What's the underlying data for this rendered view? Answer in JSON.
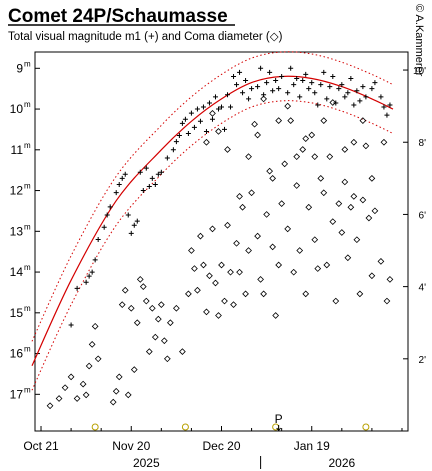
{
  "chart_data": {
    "type": "scatter",
    "title": "Comet 24P/Schaumasse",
    "subtitle": "Total visual magnitude m1 (+) and Coma diameter (◇)",
    "credit": "© A.Kammerer",
    "perihelion_label": "P",
    "perihelion_day": 79,
    "x_axis": {
      "range_days": [
        -2,
        122
      ],
      "reference": "Oct 21 2025 = day 0",
      "tick_days": [
        0,
        30,
        60,
        90
      ],
      "tick_labels": [
        "Oct 21",
        "Nov 20",
        "Dec 20",
        "Jan 19"
      ],
      "year_labels": [
        {
          "text": "2025",
          "day": 35
        },
        {
          "text": "2026",
          "day": 100
        }
      ],
      "year_divider_day": 73
    },
    "magnitude_axis": {
      "range": [
        8.6,
        17.9
      ],
      "inverted": true,
      "ticks": [
        9,
        10,
        11,
        12,
        13,
        14,
        15,
        16,
        17
      ],
      "tick_labels": [
        "9",
        "10",
        "11",
        "12",
        "13",
        "14",
        "15",
        "16",
        "17"
      ],
      "unit_label": "m"
    },
    "coma_axis": {
      "range": [
        0,
        10.5
      ],
      "unit": "arcmin",
      "ticks": [
        2,
        4,
        6,
        8,
        10
      ],
      "tick_labels": [
        "2'",
        "4'",
        "6'",
        "8'",
        "10'"
      ]
    },
    "moon_days": [
      18,
      48,
      78,
      108
    ],
    "series": [
      {
        "marker": "plus",
        "quantity": "total visual magnitude m1",
        "points": [
          [
            10,
            15.3
          ],
          [
            12,
            14.4
          ],
          [
            15,
            14.25
          ],
          [
            16,
            14.1
          ],
          [
            17,
            14.0
          ],
          [
            18,
            13.7
          ],
          [
            19,
            13.2
          ],
          [
            21,
            12.9
          ],
          [
            22,
            12.6
          ],
          [
            23,
            12.4
          ],
          [
            25,
            12.05
          ],
          [
            26,
            11.85
          ],
          [
            27,
            11.7
          ],
          [
            28,
            11.6
          ],
          [
            29,
            12.6
          ],
          [
            30,
            13.05
          ],
          [
            31,
            12.85
          ],
          [
            32,
            12.75
          ],
          [
            33,
            11.55
          ],
          [
            34,
            12.0
          ],
          [
            35,
            11.45
          ],
          [
            36,
            11.9
          ],
          [
            37,
            11.7
          ],
          [
            38,
            11.85
          ],
          [
            39,
            11.6
          ],
          [
            40,
            11.55
          ],
          [
            42,
            11.2
          ],
          [
            44,
            11.0
          ],
          [
            45,
            10.8
          ],
          [
            46,
            10.65
          ],
          [
            47,
            10.35
          ],
          [
            48,
            10.25
          ],
          [
            49,
            10.6
          ],
          [
            50,
            10.1
          ],
          [
            51,
            10.45
          ],
          [
            52,
            10.0
          ],
          [
            53,
            10.3
          ],
          [
            54,
            9.95
          ],
          [
            55,
            10.55
          ],
          [
            56,
            9.85
          ],
          [
            57,
            10.25
          ],
          [
            58,
            9.7
          ],
          [
            59,
            10.0
          ],
          [
            60,
            9.95
          ],
          [
            61,
            10.5
          ],
          [
            62,
            9.65
          ],
          [
            63,
            9.95
          ],
          [
            64,
            9.2
          ],
          [
            65,
            9.4
          ],
          [
            66,
            9.1
          ],
          [
            67,
            9.6
          ],
          [
            68,
            9.3
          ],
          [
            69,
            9.75
          ],
          [
            70,
            9.5
          ],
          [
            72,
            9.45
          ],
          [
            73,
            9.0
          ],
          [
            74,
            9.65
          ],
          [
            75,
            9.35
          ],
          [
            76,
            9.1
          ],
          [
            77,
            9.55
          ],
          [
            78,
            9.3
          ],
          [
            79,
            9.5
          ],
          [
            80,
            9.2
          ],
          [
            82,
            9.6
          ],
          [
            83,
            9.0
          ],
          [
            84,
            9.4
          ],
          [
            85,
            9.25
          ],
          [
            86,
            9.7
          ],
          [
            87,
            9.3
          ],
          [
            88,
            9.15
          ],
          [
            89,
            9.5
          ],
          [
            90,
            9.35
          ],
          [
            91,
            9.6
          ],
          [
            92,
            9.9
          ],
          [
            93,
            9.4
          ],
          [
            94,
            9.1
          ],
          [
            95,
            9.75
          ],
          [
            96,
            9.45
          ],
          [
            97,
            9.2
          ],
          [
            98,
            9.85
          ],
          [
            99,
            9.5
          ],
          [
            100,
            9.4
          ],
          [
            101,
            9.7
          ],
          [
            102,
            9.6
          ],
          [
            103,
            9.25
          ],
          [
            104,
            9.9
          ],
          [
            105,
            9.55
          ],
          [
            106,
            9.8
          ],
          [
            107,
            9.45
          ],
          [
            108,
            9.7
          ],
          [
            110,
            9.5
          ],
          [
            111,
            9.35
          ],
          [
            113,
            9.7
          ],
          [
            114,
            9.95
          ],
          [
            115,
            10.15
          ],
          [
            116,
            9.9
          ]
        ]
      },
      {
        "marker": "diamond",
        "quantity": "coma diameter (arcmin)",
        "points": [
          [
            3,
            0.7
          ],
          [
            6,
            0.9
          ],
          [
            8,
            1.2
          ],
          [
            10,
            1.5
          ],
          [
            12,
            0.9
          ],
          [
            14,
            1.3
          ],
          [
            15,
            1.0
          ],
          [
            16,
            1.8
          ],
          [
            17,
            2.4
          ],
          [
            18,
            2.9
          ],
          [
            19,
            2.0
          ],
          [
            24,
            0.8
          ],
          [
            25,
            1.1
          ],
          [
            26,
            1.5
          ],
          [
            27,
            3.5
          ],
          [
            28,
            3.9
          ],
          [
            29,
            1.0
          ],
          [
            30,
            3.4
          ],
          [
            31,
            1.7
          ],
          [
            32,
            3.0
          ],
          [
            33,
            4.2
          ],
          [
            34,
            4.0
          ],
          [
            35,
            3.6
          ],
          [
            36,
            2.2
          ],
          [
            37,
            3.4
          ],
          [
            38,
            2.6
          ],
          [
            39,
            3.1
          ],
          [
            40,
            3.5
          ],
          [
            41,
            2.5
          ],
          [
            42,
            2.0
          ],
          [
            43,
            3.0
          ],
          [
            45,
            3.4
          ],
          [
            47,
            2.2
          ],
          [
            49,
            3.8
          ],
          [
            50,
            5.0
          ],
          [
            51,
            4.5
          ],
          [
            52,
            3.9
          ],
          [
            53,
            5.4
          ],
          [
            54,
            4.6
          ],
          [
            55,
            3.3
          ],
          [
            56,
            4.3
          ],
          [
            57,
            5.6
          ],
          [
            58,
            4.1
          ],
          [
            59,
            3.2
          ],
          [
            60,
            4.6
          ],
          [
            61,
            3.6
          ],
          [
            62,
            5.7
          ],
          [
            63,
            4.4
          ],
          [
            64,
            3.5
          ],
          [
            65,
            5.2
          ],
          [
            66,
            4.4
          ],
          [
            67,
            6.2
          ],
          [
            68,
            3.8
          ],
          [
            69,
            5.0
          ],
          [
            70,
            6.6
          ],
          [
            71,
            8.5
          ],
          [
            72,
            5.4
          ],
          [
            73,
            4.2
          ],
          [
            74,
            3.8
          ],
          [
            75,
            6.0
          ],
          [
            76,
            7.2
          ],
          [
            77,
            5.1
          ],
          [
            78,
            3.2
          ],
          [
            79,
            4.6
          ],
          [
            80,
            6.3
          ],
          [
            81,
            7.4
          ],
          [
            82,
            5.6
          ],
          [
            83,
            8.6
          ],
          [
            84,
            4.4
          ],
          [
            85,
            6.8
          ],
          [
            86,
            5.0
          ],
          [
            87,
            7.8
          ],
          [
            88,
            3.8
          ],
          [
            89,
            6.2
          ],
          [
            90,
            8.2
          ],
          [
            91,
            5.3
          ],
          [
            92,
            4.5
          ],
          [
            93,
            7.0
          ],
          [
            94,
            6.6
          ],
          [
            95,
            4.6
          ],
          [
            96,
            7.6
          ],
          [
            97,
            5.8
          ],
          [
            98,
            3.6
          ],
          [
            99,
            6.3
          ],
          [
            100,
            5.5
          ],
          [
            101,
            6.9
          ],
          [
            102,
            4.8
          ],
          [
            103,
            6.2
          ],
          [
            104,
            8.0
          ],
          [
            105,
            5.3
          ],
          [
            106,
            3.8
          ],
          [
            107,
            6.4
          ],
          [
            108,
            7.9
          ],
          [
            109,
            5.9
          ],
          [
            110,
            4.3
          ],
          [
            111,
            6.1
          ],
          [
            113,
            4.7
          ],
          [
            114,
            8.0
          ],
          [
            115,
            3.6
          ],
          [
            116,
            4.2
          ],
          [
            55,
            8.0
          ],
          [
            57,
            8.8
          ],
          [
            59,
            8.3
          ],
          [
            62,
            7.8
          ],
          [
            66,
            6.5
          ],
          [
            69,
            7.6
          ],
          [
            72,
            8.2
          ],
          [
            74,
            9.2
          ],
          [
            77,
            7.0
          ],
          [
            79,
            8.6
          ],
          [
            82,
            9.0
          ],
          [
            85,
            7.6
          ],
          [
            88,
            8.1
          ],
          [
            91,
            7.6
          ],
          [
            94,
            8.6
          ],
          [
            97,
            9.1
          ],
          [
            101,
            7.8
          ],
          [
            104,
            6.5
          ],
          [
            107,
            8.6
          ],
          [
            110,
            7.0
          ]
        ]
      }
    ],
    "fit": {
      "quantity": "magnitude model",
      "points": [
        [
          -3,
          16.3
        ],
        [
          10,
          14.2
        ],
        [
          25,
          12.25
        ],
        [
          40,
          11.0
        ],
        [
          50,
          10.3
        ],
        [
          60,
          9.75
        ],
        [
          70,
          9.35
        ],
        [
          80,
          9.2
        ],
        [
          90,
          9.25
        ],
        [
          100,
          9.45
        ],
        [
          110,
          9.75
        ],
        [
          117,
          10.0
        ]
      ],
      "band": 0.6
    }
  }
}
